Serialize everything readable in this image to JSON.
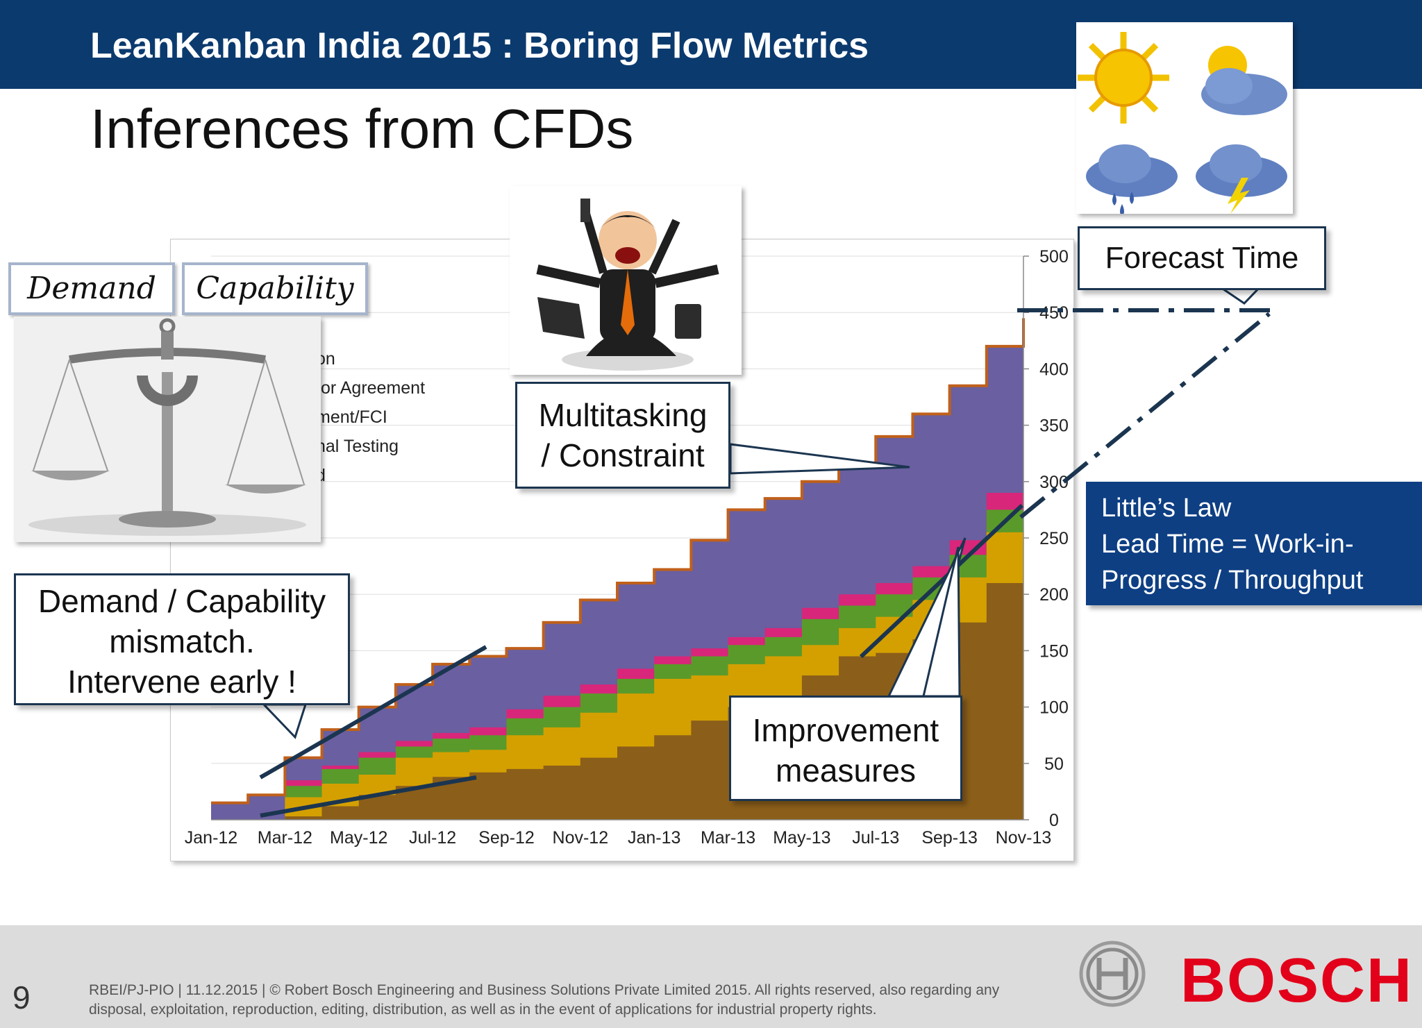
{
  "header": {
    "title": "LeanKanban India 2015 : Boring Flow Metrics"
  },
  "slide": {
    "title": "Inferences from CFDs"
  },
  "labels": {
    "demand": "Demand",
    "capability": "Capability",
    "legend_partial": [
      "on",
      "for Agreement",
      "ment/FCI",
      "nal Testing",
      "d"
    ]
  },
  "callouts": {
    "mismatch": [
      "Demand / Capability",
      "mismatch.",
      "Intervene early !"
    ],
    "multitasking": [
      "Multitasking",
      "/ Constraint"
    ],
    "improvement": [
      "Improvement",
      "measures"
    ],
    "forecast": "Forecast Time"
  },
  "littles_law": {
    "title": "Little’s Law",
    "line1": "Lead Time  = Work-in-",
    "line2": "Progress  / Throughput"
  },
  "footer": {
    "page_number": "9",
    "text": "RBEI/PJ-PIO | 11.12.2015 | © Robert Bosch Engineering and Business Solutions Private Limited 2015. All rights reserved, also regarding any disposal, exploitation, reproduction, editing, distribution, as well as in the event of applications for industrial property rights.",
    "brand": "BOSCH"
  },
  "colors": {
    "header": "#0b3a6e",
    "done": "#8b5e1a",
    "testing": "#d4a000",
    "development": "#5a9a2a",
    "agreement": "#d8267a",
    "ideation": "#6a5fa0",
    "topline": "#c0601a",
    "annotation": "#1b3550",
    "brand": "#e2001a"
  },
  "chart_data": {
    "type": "area",
    "x": [
      "Jan-12",
      "Feb-12",
      "Mar-12",
      "Apr-12",
      "May-12",
      "Jun-12",
      "Jul-12",
      "Aug-12",
      "Sep-12",
      "Oct-12",
      "Nov-12",
      "Dec-12",
      "Jan-13",
      "Feb-13",
      "Mar-13",
      "Apr-13",
      "May-13",
      "Jun-13",
      "Jul-13",
      "Aug-13",
      "Sep-13",
      "Oct-13",
      "Nov-13"
    ],
    "xticks": [
      "Jan-12",
      "Mar-12",
      "May-12",
      "Jul-12",
      "Sep-12",
      "Nov-12",
      "Jan-13",
      "Mar-13",
      "May-13",
      "Jul-13",
      "Sep-13",
      "Nov-13"
    ],
    "ylim": [
      0,
      500
    ],
    "yticks": [
      0,
      50,
      100,
      150,
      200,
      250,
      300,
      350,
      400,
      450,
      500
    ],
    "axis_position": "right",
    "grid": true,
    "series": [
      {
        "key": "done",
        "values": [
          0,
          0,
          3,
          12,
          22,
          30,
          38,
          42,
          45,
          48,
          55,
          65,
          75,
          88,
          100,
          108,
          128,
          145,
          148,
          160,
          175,
          210,
          255
        ]
      },
      {
        "key": "testing",
        "values": [
          0,
          0,
          20,
          32,
          40,
          55,
          60,
          62,
          75,
          82,
          95,
          112,
          125,
          128,
          138,
          145,
          155,
          170,
          180,
          195,
          215,
          255,
          300
        ]
      },
      {
        "key": "development",
        "values": [
          0,
          0,
          30,
          45,
          55,
          65,
          72,
          75,
          90,
          100,
          112,
          125,
          138,
          145,
          155,
          162,
          178,
          190,
          200,
          215,
          235,
          275,
          318
        ]
      },
      {
        "key": "agreement",
        "values": [
          0,
          0,
          35,
          48,
          60,
          70,
          77,
          82,
          98,
          110,
          120,
          134,
          145,
          152,
          162,
          170,
          188,
          200,
          210,
          225,
          248,
          290,
          335
        ]
      },
      {
        "key": "ideation",
        "values": [
          15,
          22,
          55,
          80,
          100,
          120,
          138,
          145,
          152,
          175,
          195,
          210,
          222,
          248,
          275,
          285,
          300,
          315,
          340,
          360,
          385,
          420,
          445
        ]
      }
    ]
  }
}
